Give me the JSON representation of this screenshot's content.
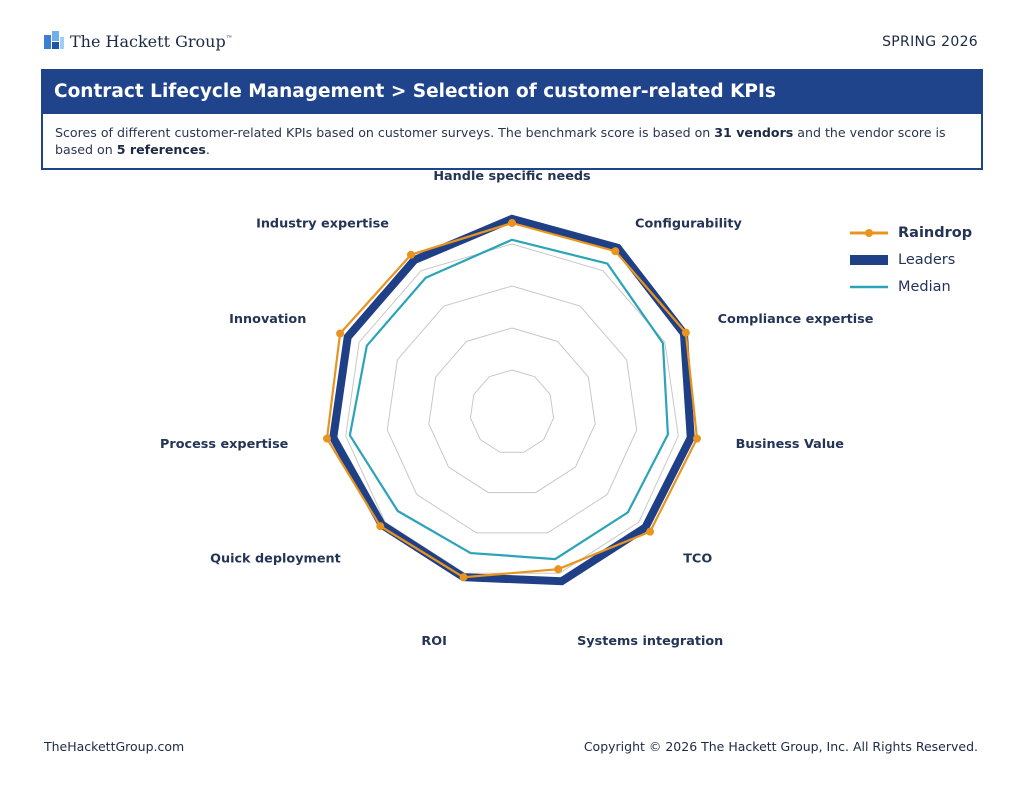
{
  "header": {
    "logo_text": "The Hackett Group",
    "logo_mark": "™",
    "edition": "SPRING 2026"
  },
  "title": "Contract Lifecycle Management > Selection of customer-related KPIs",
  "description": {
    "part1": "Scores of different customer-related KPIs based on customer surveys. The benchmark score is based on ",
    "vendors": "31 vendors",
    "part2": " and the vendor score is based on ",
    "references": "5 references",
    "part3": "."
  },
  "colors": {
    "raindrop": "#e8941e",
    "leaders": "#1f3f86",
    "median": "#2ba3b8",
    "grid": "#c8c8c8",
    "title_bar": "#20448c"
  },
  "chart_data": {
    "type": "radar",
    "axes": [
      "Handle specific needs",
      "Configurability",
      "Compliance expertise",
      "Business Value",
      "TCO",
      "Systems integration",
      "ROI",
      "Quick deployment",
      "Process expertise",
      "Innovation",
      "Industry expertise"
    ],
    "rmax": 1.0,
    "grid_levels": 5,
    "legend_position": "right",
    "series": [
      {
        "name": "Raindrop",
        "style": "line-markers",
        "values": [
          0.9,
          0.91,
          0.91,
          0.89,
          0.87,
          0.78,
          0.82,
          0.83,
          0.89,
          0.9,
          0.89
        ]
      },
      {
        "name": "Leaders",
        "style": "thick-band",
        "values": [
          0.92,
          0.93,
          0.9,
          0.86,
          0.84,
          0.84,
          0.82,
          0.82,
          0.86,
          0.86,
          0.86
        ]
      },
      {
        "name": "Median",
        "style": "line",
        "values": [
          0.82,
          0.84,
          0.79,
          0.75,
          0.73,
          0.73,
          0.7,
          0.72,
          0.78,
          0.76,
          0.76
        ]
      }
    ]
  },
  "footer": {
    "website": "TheHackettGroup.com",
    "copyright": "Copyright © 2026 The Hackett Group, Inc. All Rights Reserved."
  }
}
